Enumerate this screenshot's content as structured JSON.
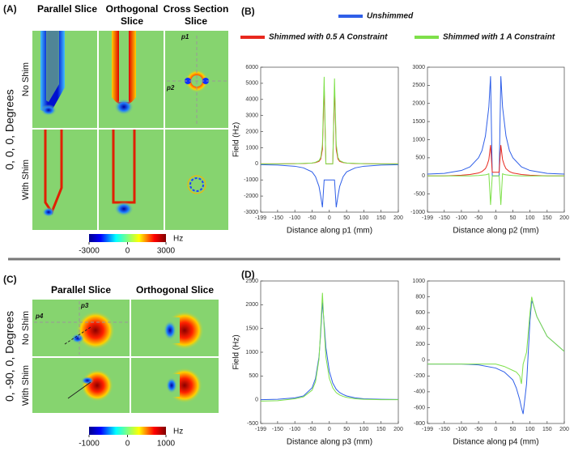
{
  "panel_labels": [
    "(A)",
    "(B)",
    "(C)",
    "(D)"
  ],
  "panel_a": {
    "columns": [
      "Parallel Slice",
      "Orthogonal Slice",
      "Cross Section Slice"
    ],
    "rows": [
      "No Shim",
      "With Shim"
    ],
    "orientation": "0, 0, 0, Degrees",
    "probes": [
      "p1",
      "p2"
    ],
    "colorbar": {
      "ticks": [
        -3000,
        0,
        3000
      ],
      "unit": "Hz"
    }
  },
  "panel_c": {
    "columns": [
      "Parallel Slice",
      "Orthogonal Slice"
    ],
    "rows": [
      "No Shim",
      "With Shim"
    ],
    "orientation": "0, -90, 0, Degrees",
    "probes": [
      "p3",
      "p4"
    ],
    "colorbar": {
      "ticks": [
        -1000,
        0,
        1000
      ],
      "unit": "Hz"
    }
  },
  "chart_data": [
    {
      "type": "line",
      "xlabel": "Distance along p1 (mm)",
      "ylabel": "Field (Hz)",
      "x": [
        -199,
        -150,
        -100,
        -75,
        -50,
        -40,
        -30,
        -25,
        -20,
        -15,
        -10,
        0,
        10,
        15,
        20,
        25,
        30,
        40,
        50,
        75,
        100,
        150,
        200
      ],
      "series": [
        {
          "name": "Unshimmed",
          "color": "#2f5fe8",
          "values": [
            -50,
            -80,
            -150,
            -250,
            -500,
            -800,
            -1400,
            -2000,
            -2700,
            -1000,
            -1000,
            -1000,
            -1000,
            -1000,
            -2700,
            -2000,
            -1400,
            -800,
            -500,
            -250,
            -150,
            -80,
            -50
          ]
        },
        {
          "name": "Shimmed with 0.5 A Constraint",
          "color": "#e8281e",
          "values": [
            0,
            0,
            10,
            20,
            50,
            80,
            150,
            300,
            900,
            4800,
            0,
            0,
            0,
            4700,
            900,
            300,
            150,
            80,
            50,
            20,
            10,
            0,
            0
          ]
        },
        {
          "name": "Shimmed with 1 A Constraint",
          "color": "#7ee04a",
          "values": [
            0,
            0,
            10,
            30,
            50,
            100,
            200,
            400,
            1200,
            5400,
            0,
            0,
            0,
            5300,
            1200,
            400,
            200,
            100,
            50,
            30,
            10,
            0,
            0
          ]
        }
      ],
      "xlim": [
        -199,
        200
      ],
      "ylim": [
        -3000,
        6000
      ],
      "xticks": [
        -199,
        -150,
        -100,
        -50,
        0,
        50,
        100,
        150,
        200
      ],
      "yticks": [
        -3000,
        -2000,
        -1000,
        0,
        1000,
        2000,
        3000,
        4000,
        5000,
        6000
      ]
    },
    {
      "type": "line",
      "xlabel": "Distance along p2 (mm)",
      "x": [
        -199,
        -150,
        -100,
        -75,
        -50,
        -40,
        -30,
        -25,
        -20,
        -15,
        -10,
        0,
        10,
        15,
        20,
        25,
        30,
        40,
        50,
        75,
        100,
        150,
        200
      ],
      "series": [
        {
          "color": "#2f5fe8",
          "values": [
            50,
            70,
            150,
            250,
            500,
            700,
            1100,
            1500,
            1900,
            2750,
            0,
            0,
            0,
            2750,
            1900,
            1500,
            1100,
            700,
            500,
            250,
            150,
            70,
            50
          ]
        },
        {
          "color": "#e8281e",
          "values": [
            0,
            0,
            20,
            40,
            80,
            120,
            200,
            300,
            450,
            850,
            100,
            100,
            100,
            850,
            450,
            300,
            200,
            120,
            80,
            40,
            20,
            0,
            0
          ]
        },
        {
          "color": "#7ee04a",
          "values": [
            0,
            0,
            0,
            0,
            10,
            20,
            30,
            40,
            60,
            -800,
            0,
            0,
            0,
            -800,
            60,
            40,
            30,
            20,
            10,
            0,
            0,
            0,
            0
          ]
        }
      ],
      "xlim": [
        -199,
        200
      ],
      "ylim": [
        -1000,
        3000
      ],
      "xticks": [
        -199,
        -150,
        -100,
        -50,
        0,
        50,
        100,
        150,
        200
      ],
      "yticks": [
        -1000,
        -500,
        0,
        500,
        1000,
        1500,
        2000,
        2500,
        3000
      ]
    },
    {
      "type": "line",
      "xlabel": "Distance along p3 (mm)",
      "ylabel": "Field (Hz)",
      "x": [
        -199,
        -150,
        -100,
        -75,
        -50,
        -40,
        -30,
        -25,
        -20,
        -15,
        -10,
        0,
        10,
        20,
        30,
        40,
        50,
        75,
        100,
        150,
        200
      ],
      "series": [
        {
          "color": "#2f5fe8",
          "values": [
            0,
            10,
            40,
            80,
            250,
            450,
            900,
            1400,
            2050,
            1600,
            1100,
            600,
            350,
            220,
            150,
            110,
            80,
            40,
            20,
            10,
            5
          ]
        },
        {
          "color": "#7ee04a",
          "values": [
            -30,
            -20,
            20,
            60,
            200,
            380,
            850,
            1500,
            2250,
            1500,
            900,
            450,
            250,
            150,
            100,
            70,
            50,
            20,
            10,
            0,
            0
          ]
        }
      ],
      "xlim": [
        -199,
        200
      ],
      "ylim": [
        -500,
        2500
      ],
      "xticks": [
        -199,
        -150,
        -100,
        -50,
        0,
        50,
        100,
        150,
        200
      ],
      "yticks": [
        -500,
        0,
        500,
        1000,
        1500,
        2000,
        2500
      ]
    },
    {
      "type": "line",
      "xlabel": "Distance along p4 (mm)",
      "x": [
        -199,
        -150,
        -100,
        -50,
        0,
        25,
        50,
        60,
        70,
        75,
        80,
        90,
        100,
        105,
        110,
        120,
        150,
        200
      ],
      "series": [
        {
          "color": "#2f5fe8",
          "values": [
            -50,
            -50,
            -50,
            -60,
            -100,
            -150,
            -250,
            -350,
            -500,
            -600,
            -680,
            -300,
            500,
            750,
            700,
            550,
            300,
            110
          ]
        },
        {
          "color": "#7ee04a",
          "values": [
            -50,
            -50,
            -50,
            -50,
            -50,
            -80,
            -130,
            -150,
            -200,
            -300,
            -50,
            100,
            600,
            800,
            700,
            550,
            300,
            110
          ]
        }
      ],
      "xlim": [
        -199,
        200
      ],
      "ylim": [
        -800,
        1000
      ],
      "xticks": [
        -199,
        -150,
        -100,
        -50,
        0,
        50,
        100,
        150,
        200
      ],
      "yticks": [
        -800,
        -600,
        -400,
        -200,
        0,
        200,
        400,
        600,
        800,
        1000
      ]
    }
  ]
}
